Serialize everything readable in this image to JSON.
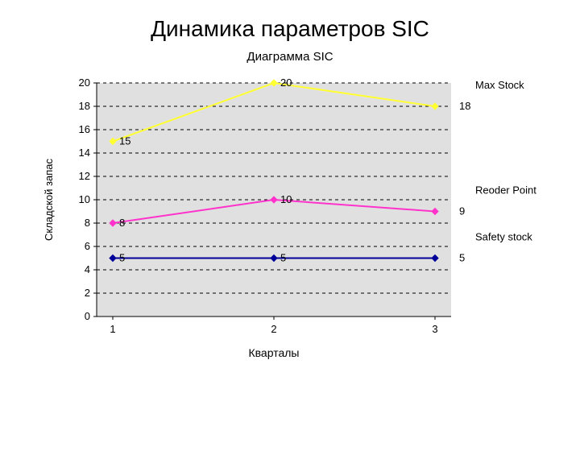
{
  "page_title": "Динамика параметров SIC",
  "chart": {
    "type": "line",
    "title": "Диаграмма SIC",
    "x_axis_label": "Кварталы",
    "y_axis_label": "Складской запас",
    "categories": [
      "1",
      "2",
      "3"
    ],
    "xlim": [
      1,
      3
    ],
    "ylim": [
      0,
      20
    ],
    "ytick_step": 2,
    "yticks": [
      0,
      2,
      4,
      6,
      8,
      10,
      12,
      14,
      16,
      18,
      20
    ],
    "plot_background": "#e0e0e0",
    "page_background": "#ffffff",
    "axis_color": "#000000",
    "grid_color": "#000000",
    "grid_dash": "4,4",
    "axis_line_width": 1,
    "grid_line_width": 1,
    "axis_font_size": 13,
    "title_font_size": 15,
    "page_title_font_size": 28,
    "series_line_width": 2,
    "marker_size": 4,
    "marker_style": "diamond",
    "series": [
      {
        "name": "Max Stock",
        "label": "Max Stock",
        "color": "#ffff33",
        "values": [
          15,
          20,
          18
        ],
        "value_labels": [
          "15",
          "20",
          "18"
        ]
      },
      {
        "name": "Reoder Point",
        "label": "Reoder Point",
        "color": "#ff33cc",
        "values": [
          8,
          10,
          9
        ],
        "value_labels": [
          "8",
          "10",
          "9"
        ]
      },
      {
        "name": "Safety stock",
        "label": "Safety stock",
        "color": "#000099",
        "values": [
          5,
          5,
          5
        ],
        "value_labels": [
          "5",
          "5",
          "5"
        ]
      }
    ]
  }
}
